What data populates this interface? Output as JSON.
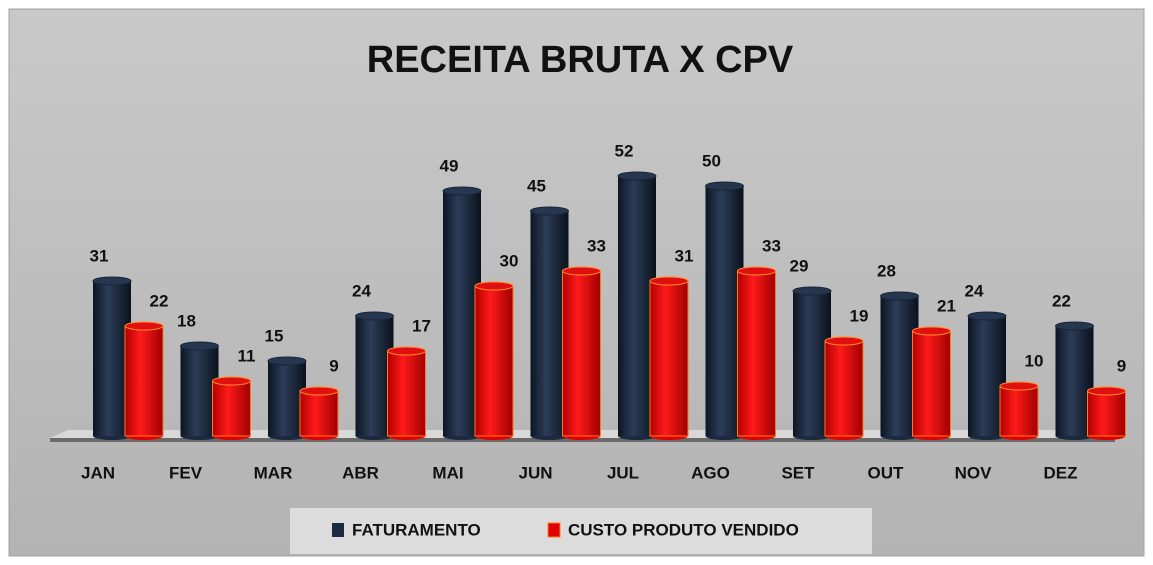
{
  "chart_data": {
    "type": "bar",
    "title": "RECEITA BRUTA X CPV",
    "categories": [
      "JAN",
      "FEV",
      "MAR",
      "ABR",
      "MAI",
      "JUN",
      "JUL",
      "AGO",
      "SET",
      "OUT",
      "NOV",
      "DEZ"
    ],
    "series": [
      {
        "name": "FATURAMENTO",
        "color": "#1b2a40",
        "values": [
          31,
          18,
          15,
          24,
          49,
          45,
          52,
          50,
          29,
          28,
          24,
          22
        ]
      },
      {
        "name": "CUSTO PRODUTO VENDIDO",
        "color": "#e00000",
        "values": [
          22,
          11,
          9,
          17,
          30,
          33,
          31,
          33,
          19,
          21,
          10,
          9
        ]
      }
    ]
  }
}
